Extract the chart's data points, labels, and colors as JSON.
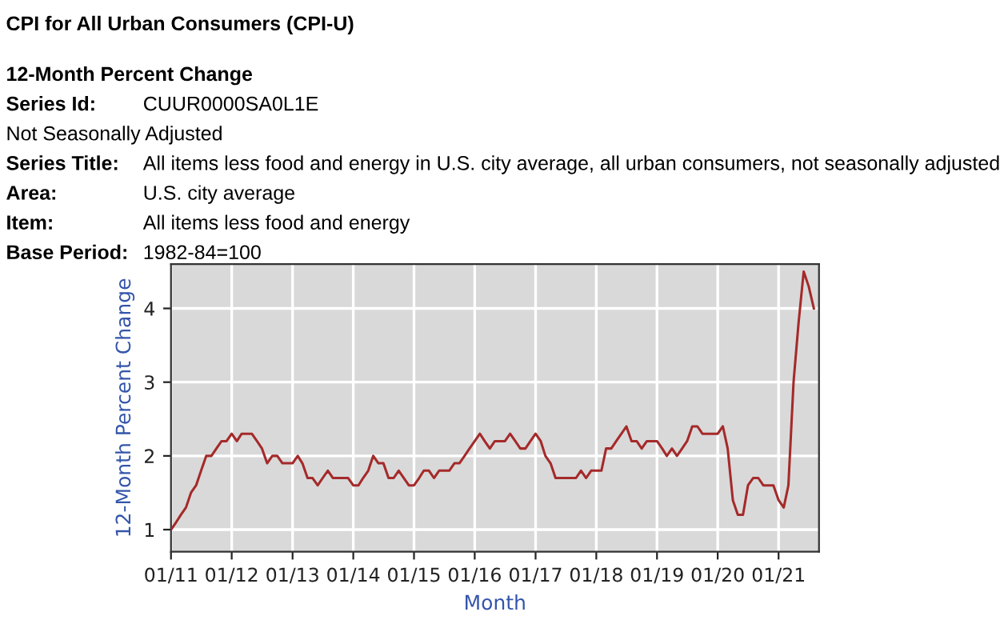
{
  "chart_data": {
    "type": "line",
    "title": "CPI for All Urban Consumers (CPI-U)",
    "subtitle": "12-Month Percent Change",
    "annotations": [
      "Series Id:\tCUUR0000SA0L1E",
      "Not Seasonally Adjusted",
      "Series Title:\tAll items less food and energy in U.S. city average, all urban consumers, not seasonally adjusted",
      "Area:\tU.S. city average",
      "Item:\tAll items less food and energy",
      "Base Period:\t1982-84=100"
    ],
    "xlabel": "Month",
    "ylabel": "12-Month Percent Change",
    "x": [
      "2011-01",
      "2011-02",
      "2011-03",
      "2011-04",
      "2011-05",
      "2011-06",
      "2011-07",
      "2011-08",
      "2011-09",
      "2011-10",
      "2011-11",
      "2011-12",
      "2012-01",
      "2012-02",
      "2012-03",
      "2012-04",
      "2012-05",
      "2012-06",
      "2012-07",
      "2012-08",
      "2012-09",
      "2012-10",
      "2012-11",
      "2012-12",
      "2013-01",
      "2013-02",
      "2013-03",
      "2013-04",
      "2013-05",
      "2013-06",
      "2013-07",
      "2013-08",
      "2013-09",
      "2013-10",
      "2013-11",
      "2013-12",
      "2014-01",
      "2014-02",
      "2014-03",
      "2014-04",
      "2014-05",
      "2014-06",
      "2014-07",
      "2014-08",
      "2014-09",
      "2014-10",
      "2014-11",
      "2014-12",
      "2015-01",
      "2015-02",
      "2015-03",
      "2015-04",
      "2015-05",
      "2015-06",
      "2015-07",
      "2015-08",
      "2015-09",
      "2015-10",
      "2015-11",
      "2015-12",
      "2016-01",
      "2016-02",
      "2016-03",
      "2016-04",
      "2016-05",
      "2016-06",
      "2016-07",
      "2016-08",
      "2016-09",
      "2016-10",
      "2016-11",
      "2016-12",
      "2017-01",
      "2017-02",
      "2017-03",
      "2017-04",
      "2017-05",
      "2017-06",
      "2017-07",
      "2017-08",
      "2017-09",
      "2017-10",
      "2017-11",
      "2017-12",
      "2018-01",
      "2018-02",
      "2018-03",
      "2018-04",
      "2018-05",
      "2018-06",
      "2018-07",
      "2018-08",
      "2018-09",
      "2018-10",
      "2018-11",
      "2018-12",
      "2019-01",
      "2019-02",
      "2019-03",
      "2019-04",
      "2019-05",
      "2019-06",
      "2019-07",
      "2019-08",
      "2019-09",
      "2019-10",
      "2019-11",
      "2019-12",
      "2020-01",
      "2020-02",
      "2020-03",
      "2020-04",
      "2020-05",
      "2020-06",
      "2020-07",
      "2020-08",
      "2020-09",
      "2020-10",
      "2020-11",
      "2020-12",
      "2021-01",
      "2021-02",
      "2021-03",
      "2021-04",
      "2021-05",
      "2021-06",
      "2021-07",
      "2021-08"
    ],
    "series": [
      {
        "color": "#a52a2a",
        "values": [
          1.0,
          1.1,
          1.2,
          1.3,
          1.5,
          1.6,
          1.8,
          2.0,
          2.0,
          2.1,
          2.2,
          2.2,
          2.3,
          2.2,
          2.3,
          2.3,
          2.3,
          2.2,
          2.1,
          1.9,
          2.0,
          2.0,
          1.9,
          1.9,
          1.9,
          2.0,
          1.9,
          1.7,
          1.7,
          1.6,
          1.7,
          1.8,
          1.7,
          1.7,
          1.7,
          1.7,
          1.6,
          1.6,
          1.7,
          1.8,
          2.0,
          1.9,
          1.9,
          1.7,
          1.7,
          1.8,
          1.7,
          1.6,
          1.6,
          1.7,
          1.8,
          1.8,
          1.7,
          1.8,
          1.8,
          1.8,
          1.9,
          1.9,
          2.0,
          2.1,
          2.2,
          2.3,
          2.2,
          2.1,
          2.2,
          2.2,
          2.2,
          2.3,
          2.2,
          2.1,
          2.1,
          2.2,
          2.3,
          2.2,
          2.0,
          1.9,
          1.7,
          1.7,
          1.7,
          1.7,
          1.7,
          1.8,
          1.7,
          1.8,
          1.8,
          1.8,
          2.1,
          2.1,
          2.2,
          2.3,
          2.4,
          2.2,
          2.2,
          2.1,
          2.2,
          2.2,
          2.2,
          2.1,
          2.0,
          2.1,
          2.0,
          2.1,
          2.2,
          2.4,
          2.4,
          2.3,
          2.3,
          2.3,
          2.3,
          2.4,
          2.1,
          1.4,
          1.2,
          1.2,
          1.6,
          1.7,
          1.7,
          1.6,
          1.6,
          1.6,
          1.4,
          1.3,
          1.6,
          3.0,
          3.8,
          4.5,
          4.3,
          4.0
        ]
      }
    ],
    "xlim": [
      "2011-01",
      "2021-09"
    ],
    "xticks": [
      {
        "value": "2011-01",
        "label": "01/11"
      },
      {
        "value": "2012-01",
        "label": "01/12"
      },
      {
        "value": "2013-01",
        "label": "01/13"
      },
      {
        "value": "2014-01",
        "label": "01/14"
      },
      {
        "value": "2015-01",
        "label": "01/15"
      },
      {
        "value": "2016-01",
        "label": "01/16"
      },
      {
        "value": "2017-01",
        "label": "01/17"
      },
      {
        "value": "2018-01",
        "label": "01/18"
      },
      {
        "value": "2019-01",
        "label": "01/19"
      },
      {
        "value": "2020-01",
        "label": "01/20"
      },
      {
        "value": "2021-01",
        "label": "01/21"
      }
    ],
    "ylim": [
      0.7,
      4.6
    ],
    "yticks": [
      1,
      2,
      3,
      4
    ],
    "grid": true,
    "legend": false,
    "marker": "none",
    "line_style": "solid"
  }
}
